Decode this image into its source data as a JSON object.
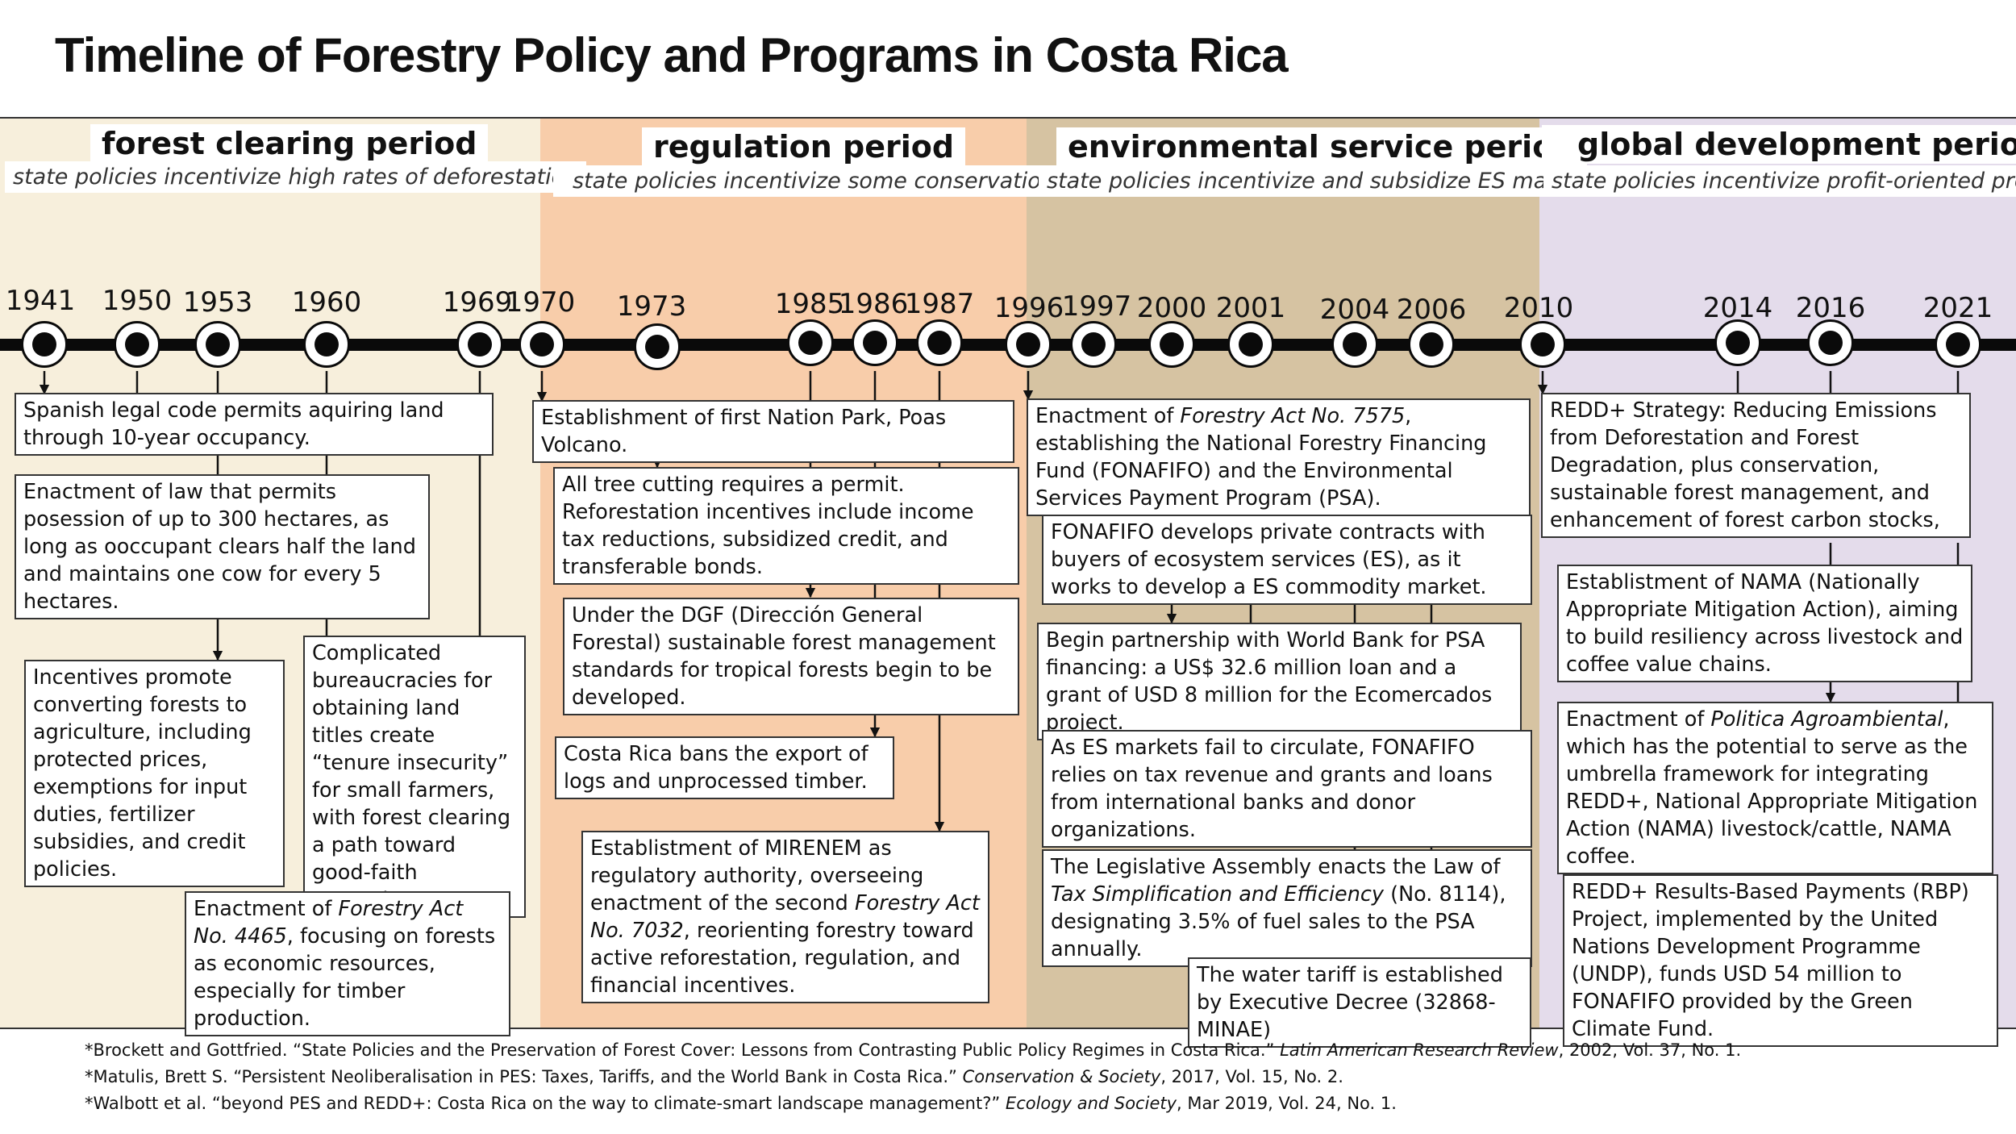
{
  "title": "Timeline of Forestry Policy and Programs in Costa Rica",
  "periods": [
    {
      "name": "forest clearing period",
      "subtitle": "state policies incentivize high rates of deforestation",
      "color": "#f7efdc"
    },
    {
      "name": "regulation period",
      "subtitle": "state policies incentivize some conservation",
      "color": "#f8cdaa"
    },
    {
      "name": "environmental service period",
      "subtitle": "state policies incentivize and subsidize ES markets",
      "color": "#d6c3a2"
    },
    {
      "name": "global development period",
      "subtitle": "state policies incentivize profit-oriented production",
      "color": "#e4dceb"
    }
  ],
  "years": [
    "1941",
    "1950",
    "1953",
    "1960",
    "1969",
    "1970",
    "1973",
    "1985",
    "1986",
    "1987",
    "1996",
    "1997",
    "2000",
    "2001",
    "2004",
    "2006",
    "2010",
    "2014",
    "2016",
    "2021"
  ],
  "events": [
    {
      "text": "Spanish legal code permits aquiring land through 10-year occupancy."
    },
    {
      "text": "Enactment of law that permits posession of up to 300 hectares, as long as ooccupant clears half the land and maintains one cow for every 5 hectares."
    },
    {
      "text": "Incentives promote converting forests to agriculture, including protected prices, exemptions for input duties, fertilizer subsidies, and credit policies."
    },
    {
      "text": "Complicated bureaucracies for obtaining land titles create “tenure insecurity” for small farmers, with forest clearing a path toward good-faith posession."
    },
    {
      "pre": "Enactment of ",
      "em": "Forestry Act No. 4465",
      "post": ", focusing on forests as economic resources, especially for timber production."
    },
    {
      "text": "Establishment of first Nation Park, Poas Volcano."
    },
    {
      "text": "All tree cutting requires a permit. Reforestation incentives include income tax reductions, subsidized credit, and transferable bonds."
    },
    {
      "text": "Under the DGF (Dirección General Forestal) sustainable forest management standards for tropical forests begin to be developed."
    },
    {
      "text": "Costa Rica bans the export of logs and unprocessed timber."
    },
    {
      "pre": "Establistment of MIRENEM as regulatory authority, overseeing enactment of the second ",
      "em": "Forestry Act No. 7032",
      "post": ", reorienting forestry toward active reforestation, regulation, and financial incentives."
    },
    {
      "pre": "Enactment of ",
      "em": "Forestry Act No. 7575",
      "post": ", establishing the National Forestry Financing Fund (FONAFIFO) and the Environmental Services Payment Program (PSA)."
    },
    {
      "text": "FONAFIFO develops private contracts with buyers of ecosystem services (ES), as it works to develop a ES commodity market."
    },
    {
      "text": "Begin partnership with World Bank for PSA financing: a US$ 32.6 million loan and a grant of USD 8 million for the Ecomercados project."
    },
    {
      "text": "As ES markets fail to circulate, FONAFIFO relies on tax revenue and grants and loans from international banks and donor organizations."
    },
    {
      "pre": "The Legislative Assembly enacts the Law of ",
      "em": "Tax Simplification and Efficiency",
      "post": " (No. 8114), designating 3.5% of fuel sales to the PSA annually."
    },
    {
      "text": "The water tariff is established by Executive Decree (32868-MINAE)"
    },
    {
      "text": "REDD+ Strategy: Reducing Emissions from Deforestation and Forest Degradation, plus conservation, sustainable forest management, and enhancement of forest carbon stocks,"
    },
    {
      "text": "Establistment of NAMA (Nationally Appropriate Mitigation Action), aiming to build resiliency across livestock and coffee value chains."
    },
    {
      "pre": "Enactment of ",
      "em": "Politica Agroambiental",
      "post": ", which has the potential to serve as the umbrella framework for integrating REDD+, National Appropriate Mitigation Action (NAMA) livestock/cattle, NAMA coffee."
    },
    {
      "text": "REDD+ Results-Based Payments (RBP) Project, implemented by the United Nations Development Programme (UNDP), funds USD 54 million to FONAFIFO provided by the Green Climate Fund."
    }
  ],
  "footnotes": [
    {
      "pre": "*Brockett and Gottfried. “State Policies and the Preservation of Forest Cover: Lessons from Contrasting Public Policy Regimes in Costa Rica.” ",
      "em": "Latin American Research Review",
      "post": ", 2002, Vol. 37, No. 1."
    },
    {
      "pre": "*Matulis, Brett S. “Persistent Neoliberalisation in PES: Taxes, Tariffs, and the World Bank in Costa Rica.” ",
      "em": "Conservation & Society",
      "post": ", 2017, Vol. 15, No. 2."
    },
    {
      "pre": "*Walbott et al. “beyond PES and REDD+: Costa Rica on the way to climate-smart landscape management?” ",
      "em": "Ecology and Society",
      "post": ", Mar 2019, Vol. 24, No. 1."
    }
  ]
}
